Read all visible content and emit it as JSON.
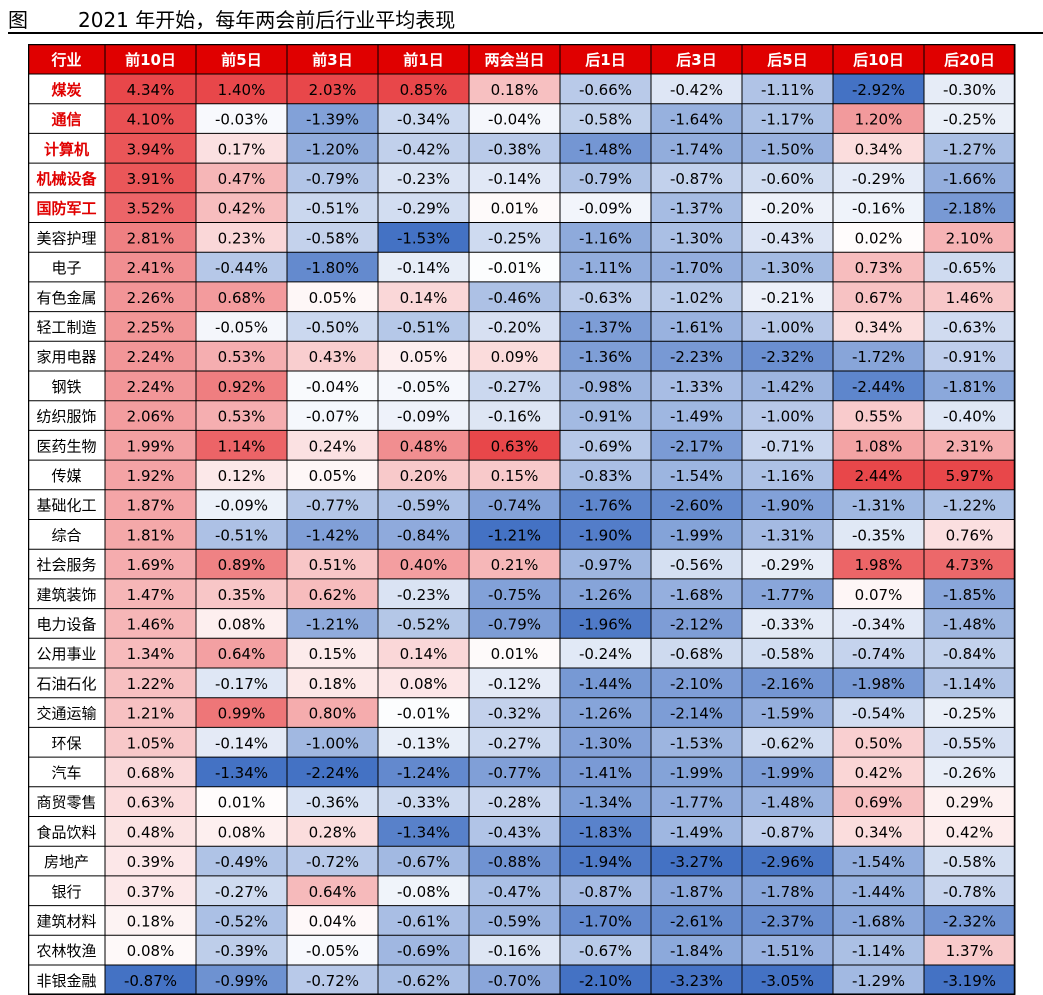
{
  "figure_label": "图",
  "title": "2021 年开始，每年两会前后行业平均表现",
  "chart_data": {
    "type": "heatmap",
    "title": "2021 年开始，每年两会前后行业平均表现",
    "corner_label": "行业",
    "columns": [
      "前10日",
      "前5日",
      "前3日",
      "前1日",
      "两会当日",
      "后1日",
      "后3日",
      "后5日",
      "后10日",
      "后20日"
    ],
    "highlighted_rows": [
      "煤炭",
      "通信",
      "计算机",
      "机械设备",
      "国防军工"
    ],
    "colors": {
      "header_bg": "#E00000",
      "header_text": "#FFFFFF",
      "highlight_text": "#E00000",
      "positive": "#E8474A",
      "negative": "#4472C4",
      "neutral": "#FFFFFF",
      "grid": "#000000"
    },
    "rows": [
      {
        "name": "煤炭",
        "values": [
          "4.34%",
          "1.40%",
          "2.03%",
          "0.85%",
          "0.18%",
          "-0.66%",
          "-0.42%",
          "-1.11%",
          "-2.92%",
          "-0.30%"
        ]
      },
      {
        "name": "通信",
        "values": [
          "4.10%",
          "-0.03%",
          "-1.39%",
          "-0.34%",
          "-0.04%",
          "-0.58%",
          "-1.64%",
          "-1.17%",
          "1.20%",
          "-0.25%"
        ]
      },
      {
        "name": "计算机",
        "values": [
          "3.94%",
          "0.17%",
          "-1.20%",
          "-0.42%",
          "-0.38%",
          "-1.48%",
          "-1.74%",
          "-1.50%",
          "0.34%",
          "-1.27%"
        ]
      },
      {
        "name": "机械设备",
        "values": [
          "3.91%",
          "0.47%",
          "-0.79%",
          "-0.23%",
          "-0.14%",
          "-0.79%",
          "-0.87%",
          "-0.60%",
          "-0.29%",
          "-1.66%"
        ]
      },
      {
        "name": "国防军工",
        "values": [
          "3.52%",
          "0.42%",
          "-0.51%",
          "-0.29%",
          "0.01%",
          "-0.09%",
          "-1.37%",
          "-0.20%",
          "-0.16%",
          "-2.18%"
        ]
      },
      {
        "name": "美容护理",
        "values": [
          "2.81%",
          "0.23%",
          "-0.58%",
          "-1.53%",
          "-0.25%",
          "-1.16%",
          "-1.30%",
          "-0.43%",
          "0.02%",
          "2.10%"
        ]
      },
      {
        "name": "电子",
        "values": [
          "2.41%",
          "-0.44%",
          "-1.80%",
          "-0.14%",
          "-0.01%",
          "-1.11%",
          "-1.70%",
          "-1.30%",
          "0.73%",
          "-0.65%"
        ]
      },
      {
        "name": "有色金属",
        "values": [
          "2.26%",
          "0.68%",
          "0.05%",
          "0.14%",
          "-0.46%",
          "-0.63%",
          "-1.02%",
          "-0.21%",
          "0.67%",
          "1.46%"
        ]
      },
      {
        "name": "轻工制造",
        "values": [
          "2.25%",
          "-0.05%",
          "-0.50%",
          "-0.51%",
          "-0.20%",
          "-1.37%",
          "-1.61%",
          "-1.00%",
          "0.34%",
          "-0.63%"
        ]
      },
      {
        "name": "家用电器",
        "values": [
          "2.24%",
          "0.53%",
          "0.43%",
          "0.05%",
          "0.09%",
          "-1.36%",
          "-2.23%",
          "-2.32%",
          "-1.72%",
          "-0.91%"
        ]
      },
      {
        "name": "钢铁",
        "values": [
          "2.24%",
          "0.92%",
          "-0.04%",
          "-0.05%",
          "-0.27%",
          "-0.98%",
          "-1.33%",
          "-1.42%",
          "-2.44%",
          "-1.81%"
        ]
      },
      {
        "name": "纺织服饰",
        "values": [
          "2.06%",
          "0.53%",
          "-0.07%",
          "-0.09%",
          "-0.16%",
          "-0.91%",
          "-1.49%",
          "-1.00%",
          "0.55%",
          "-0.40%"
        ]
      },
      {
        "name": "医药生物",
        "values": [
          "1.99%",
          "1.14%",
          "0.24%",
          "0.48%",
          "0.63%",
          "-0.69%",
          "-2.17%",
          "-0.71%",
          "1.08%",
          "2.31%"
        ]
      },
      {
        "name": "传媒",
        "values": [
          "1.92%",
          "0.12%",
          "0.05%",
          "0.20%",
          "0.15%",
          "-0.83%",
          "-1.54%",
          "-1.16%",
          "2.44%",
          "5.97%"
        ]
      },
      {
        "name": "基础化工",
        "values": [
          "1.87%",
          "-0.09%",
          "-0.77%",
          "-0.59%",
          "-0.74%",
          "-1.76%",
          "-2.60%",
          "-1.90%",
          "-1.31%",
          "-1.22%"
        ]
      },
      {
        "name": "综合",
        "values": [
          "1.81%",
          "-0.51%",
          "-1.42%",
          "-0.84%",
          "-1.21%",
          "-1.90%",
          "-1.99%",
          "-1.31%",
          "-0.35%",
          "0.76%"
        ]
      },
      {
        "name": "社会服务",
        "values": [
          "1.69%",
          "0.89%",
          "0.51%",
          "0.40%",
          "0.21%",
          "-0.97%",
          "-0.56%",
          "-0.29%",
          "1.98%",
          "4.73%"
        ]
      },
      {
        "name": "建筑装饰",
        "values": [
          "1.47%",
          "0.35%",
          "0.62%",
          "-0.23%",
          "-0.75%",
          "-1.26%",
          "-1.68%",
          "-1.77%",
          "0.07%",
          "-1.85%"
        ]
      },
      {
        "name": "电力设备",
        "values": [
          "1.46%",
          "0.08%",
          "-1.21%",
          "-0.52%",
          "-0.79%",
          "-1.96%",
          "-2.12%",
          "-0.33%",
          "-0.34%",
          "-1.48%"
        ]
      },
      {
        "name": "公用事业",
        "values": [
          "1.34%",
          "0.64%",
          "0.15%",
          "0.14%",
          "0.01%",
          "-0.24%",
          "-0.68%",
          "-0.58%",
          "-0.74%",
          "-0.84%"
        ]
      },
      {
        "name": "石油石化",
        "values": [
          "1.22%",
          "-0.17%",
          "0.18%",
          "0.08%",
          "-0.12%",
          "-1.44%",
          "-2.10%",
          "-2.16%",
          "-1.98%",
          "-1.14%"
        ]
      },
      {
        "name": "交通运输",
        "values": [
          "1.21%",
          "0.99%",
          "0.80%",
          "-0.01%",
          "-0.32%",
          "-1.26%",
          "-2.14%",
          "-1.59%",
          "-0.54%",
          "-0.25%"
        ]
      },
      {
        "name": "环保",
        "values": [
          "1.05%",
          "-0.14%",
          "-1.00%",
          "-0.13%",
          "-0.27%",
          "-1.30%",
          "-1.53%",
          "-0.62%",
          "0.50%",
          "-0.55%"
        ]
      },
      {
        "name": "汽车",
        "values": [
          "0.68%",
          "-1.34%",
          "-2.24%",
          "-1.24%",
          "-0.77%",
          "-1.41%",
          "-1.99%",
          "-1.99%",
          "0.42%",
          "-0.26%"
        ]
      },
      {
        "name": "商贸零售",
        "values": [
          "0.63%",
          "0.01%",
          "-0.36%",
          "-0.33%",
          "-0.28%",
          "-1.34%",
          "-1.77%",
          "-1.48%",
          "0.69%",
          "0.29%"
        ]
      },
      {
        "name": "食品饮料",
        "values": [
          "0.48%",
          "0.08%",
          "0.28%",
          "-1.34%",
          "-0.43%",
          "-1.83%",
          "-1.49%",
          "-0.87%",
          "0.34%",
          "0.42%"
        ]
      },
      {
        "name": "房地产",
        "values": [
          "0.39%",
          "-0.49%",
          "-0.72%",
          "-0.67%",
          "-0.88%",
          "-1.94%",
          "-3.27%",
          "-2.96%",
          "-1.54%",
          "-0.58%"
        ]
      },
      {
        "name": "银行",
        "values": [
          "0.37%",
          "-0.27%",
          "0.64%",
          "-0.08%",
          "-0.47%",
          "-0.87%",
          "-1.87%",
          "-1.78%",
          "-1.44%",
          "-0.78%"
        ]
      },
      {
        "name": "建筑材料",
        "values": [
          "0.18%",
          "-0.52%",
          "0.04%",
          "-0.61%",
          "-0.59%",
          "-1.70%",
          "-2.61%",
          "-2.37%",
          "-1.68%",
          "-2.32%"
        ]
      },
      {
        "name": "农林牧渔",
        "values": [
          "0.08%",
          "-0.39%",
          "-0.05%",
          "-0.69%",
          "-0.16%",
          "-0.67%",
          "-1.84%",
          "-1.51%",
          "-1.14%",
          "1.37%"
        ]
      },
      {
        "name": "非银金融",
        "values": [
          "-0.87%",
          "-0.99%",
          "-0.72%",
          "-0.62%",
          "-0.70%",
          "-2.10%",
          "-3.23%",
          "-3.05%",
          "-1.29%",
          "-3.19%"
        ]
      }
    ]
  }
}
